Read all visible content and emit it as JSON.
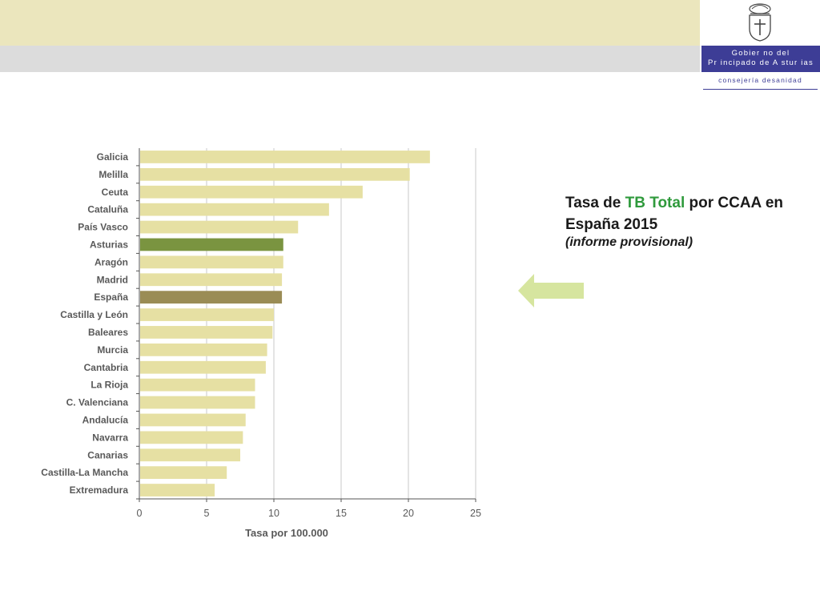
{
  "header": {
    "gov_line1": "Gobier no del",
    "gov_line2": "Pr incipado de A stur ias",
    "consejeria": "consejería desanidad",
    "logo_icon": "coat-of-arms-icon"
  },
  "side_title": {
    "prefix": "Tasa de ",
    "highlight": "TB Total",
    "suffix": " por CCAA en España 2015",
    "subtitle": "(informe provisional)",
    "highlight_color": "#2f9a3c",
    "arrow_icon": "left-arrow-icon",
    "arrow_color": "#d6e59f"
  },
  "chart_data": {
    "type": "bar",
    "orientation": "horizontal",
    "categories": [
      "Galicia",
      "Melilla",
      "Ceuta",
      "Cataluña",
      "País Vasco",
      "Asturias",
      "Aragón",
      "Madrid",
      "España",
      "Castilla y León",
      "Baleares",
      "Murcia",
      "Cantabria",
      "La Rioja",
      "C. Valenciana",
      "Andalucía",
      "Navarra",
      "Canarias",
      "Castilla-La Mancha",
      "Extremadura"
    ],
    "values": [
      21.6,
      20.1,
      16.6,
      14.1,
      11.8,
      10.7,
      10.7,
      10.6,
      10.6,
      10.0,
      9.9,
      9.5,
      9.4,
      8.6,
      8.6,
      7.9,
      7.7,
      7.5,
      6.5,
      5.6
    ],
    "highlight": {
      "Asturias": "#7a9440",
      "España": "#9a8c55"
    },
    "bar_color": "#e6e0a3",
    "xlabel": "Tasa por 100.000",
    "ylabel": "",
    "xlim": [
      0,
      25
    ],
    "xticks": [
      0,
      5,
      10,
      15,
      20,
      25
    ],
    "grid": true
  }
}
